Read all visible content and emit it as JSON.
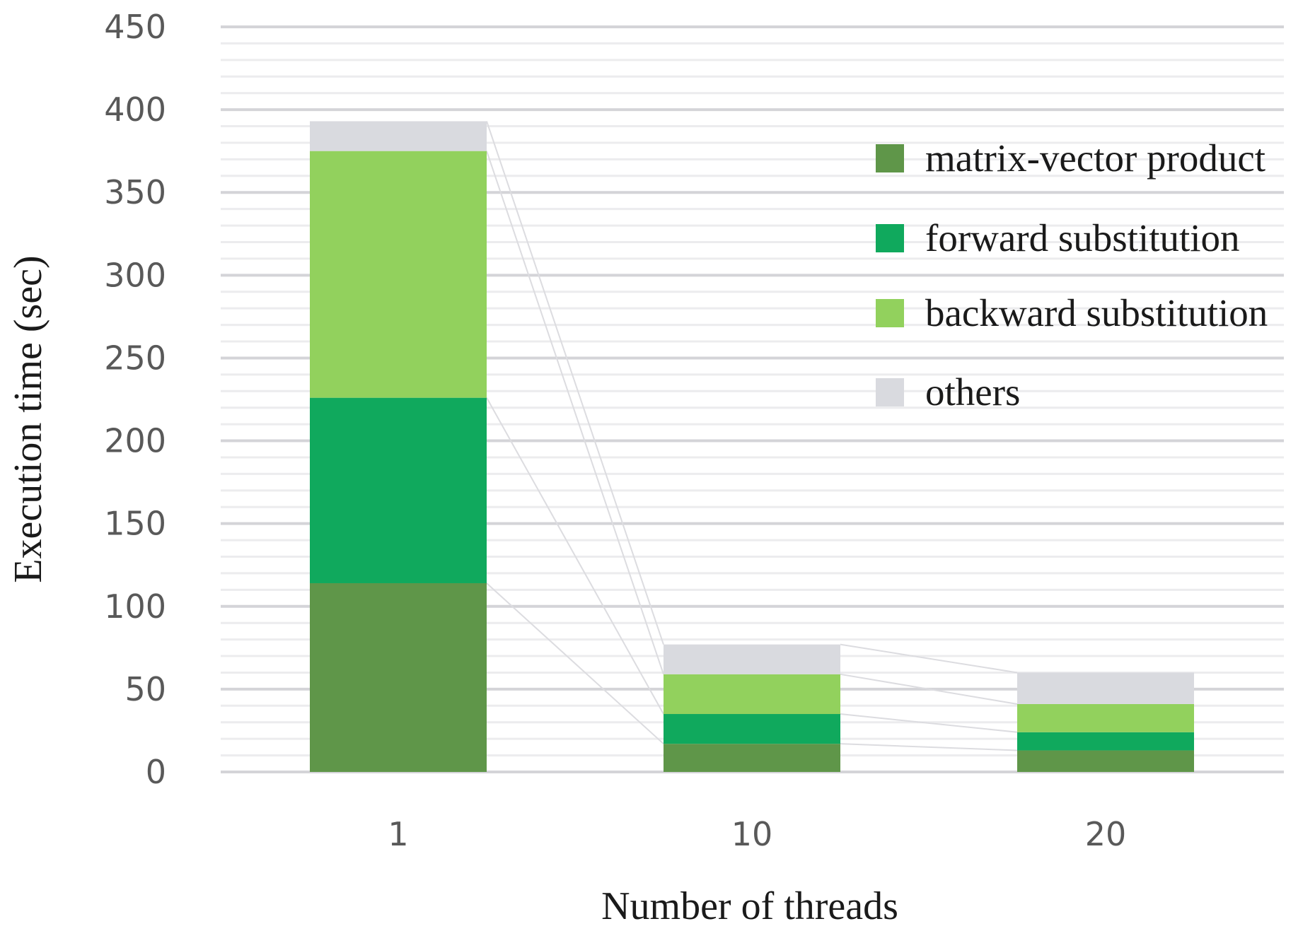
{
  "chart_data": {
    "type": "bar",
    "stacked": true,
    "xlabel": "Number of threads",
    "ylabel": "Execution time (sec)",
    "categories": [
      "1",
      "10",
      "20"
    ],
    "ylim": [
      0,
      450
    ],
    "yticks": [
      "0",
      "50",
      "100",
      "150",
      "200",
      "250",
      "300",
      "350",
      "400",
      "450"
    ],
    "grid": true,
    "legend_position": "top-right",
    "series": [
      {
        "name": "matrix-vector product",
        "color": "#5f9649",
        "values": [
          114,
          17,
          13
        ]
      },
      {
        "name": "forward substitution",
        "color": "#10a95d",
        "values": [
          112,
          18,
          11
        ]
      },
      {
        "name": "backward substitution",
        "color": "#92d15d",
        "values": [
          149,
          24,
          17
        ]
      },
      {
        "name": "others",
        "color": "#d9dadf",
        "values": [
          18,
          18,
          19
        ]
      }
    ]
  }
}
